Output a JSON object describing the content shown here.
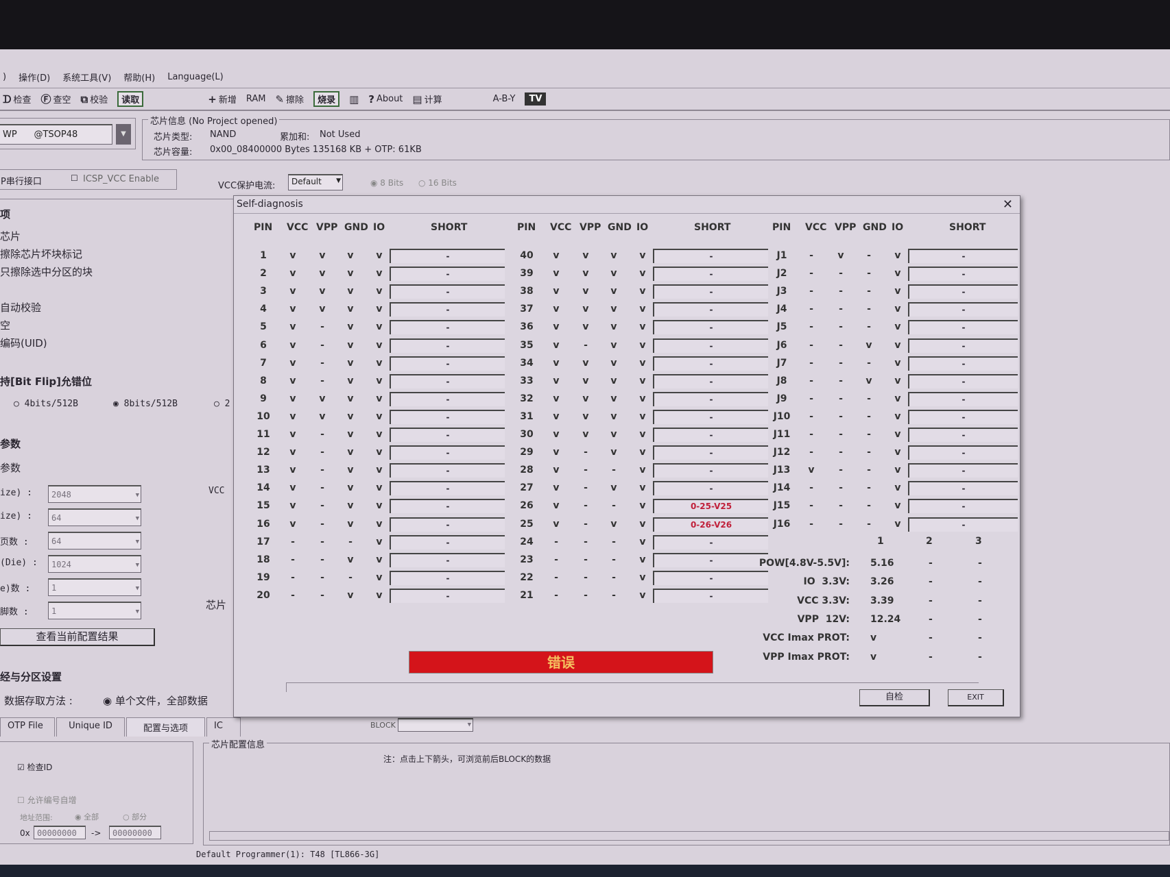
{
  "menu": [
    "操作(D)",
    "系统工具(V)",
    "帮助(H)",
    "Language(L)"
  ],
  "toolbar": [
    {
      "icon": "check-icon",
      "glyph": "ᗪ",
      "label": "检查"
    },
    {
      "icon": "blank-check-icon",
      "glyph": "Ⓕ",
      "label": "查空"
    },
    {
      "icon": "verify-icon",
      "glyph": "⧉",
      "label": "校验"
    },
    {
      "icon": "read-icon",
      "glyph": "",
      "label": "读取",
      "box": true
    },
    {
      "icon": "plus-icon",
      "glyph": "+",
      "label": "新增"
    },
    {
      "icon": "ram-icon",
      "glyph": "",
      "label": "RAM"
    },
    {
      "icon": "erase-icon",
      "glyph": "✎",
      "label": "擦除"
    },
    {
      "icon": "program-icon",
      "glyph": "",
      "label": "烧录",
      "box": true
    },
    {
      "icon": "chip-icon",
      "glyph": "▥",
      "label": ""
    },
    {
      "icon": "about-icon",
      "glyph": "?",
      "label": "About"
    },
    {
      "icon": "calculator-icon",
      "glyph": "▤",
      "label": "计算"
    },
    {
      "icon": "logic-gate-icon",
      "glyph": "",
      "label": "A-B-Y"
    },
    {
      "icon": "tv-icon",
      "glyph": "",
      "label": "TV",
      "tv": true
    }
  ],
  "chip_select": {
    "value": "WP      @TSOP48"
  },
  "chip_info": {
    "title": "芯片信息 (No Project opened)",
    "type_label": "芯片类型:",
    "type_value": "NAND",
    "checksum_label": "累加和:",
    "checksum_value": "Not Used",
    "capacity_label": "芯片容量:",
    "capacity_value": "0x00_08400000 Bytes 135168 KB  + OTP: 61KB"
  },
  "icsp": {
    "serial_label": "P串行接口",
    "vcc_enable_label": "ICSP_VCC Enable",
    "vcc_protect_label": "VCC保护电流:",
    "vcc_protect_value": "Default",
    "bits8": "8 Bits",
    "bits16": "16 Bits"
  },
  "options": {
    "section": "项",
    "items": [
      "芯片",
      "擦除芯片坏块标记",
      "只擦除选中分区的块",
      "",
      "自动校验",
      "空",
      "编码(UID)"
    ]
  },
  "bitflip": {
    "section": "持[Bit Flip]允错位",
    "opt1": "4bits/512B",
    "opt2": "8bits/512B",
    "opt3": "2"
  },
  "params": {
    "section": "参数",
    "sub": "参数",
    "rows": [
      {
        "label": "ize) :",
        "value": "2048"
      },
      {
        "label": "ize) :",
        "value": "64"
      },
      {
        "label": "页数 :",
        "value": "64"
      },
      {
        "label": "(Die) :",
        "value": "1024"
      },
      {
        "label": "e)数 :",
        "value": "1"
      },
      {
        "label": "脚数 :",
        "value": "1"
      }
    ],
    "view_button": "查看当前配置结果",
    "vcc_label": "VCC",
    "chip_label": "芯片"
  },
  "partition": {
    "section": "经与分区设置",
    "method_label": "数据存取方法 :",
    "method_value": "单个文件，全部数据"
  },
  "tabs": [
    "OTP File",
    "Unique ID",
    "配置与选项",
    "IC"
  ],
  "check_id": "检查ID",
  "allow_label": "允许编号自增",
  "addr_label": "地址范围:",
  "addr_all": "全部",
  "addr_part": "部分",
  "addr_from": "00000000",
  "addr_to": "00000000",
  "addr_prefix": "0x",
  "addr_arrow": "->",
  "config_info": {
    "title": "芯片配置信息",
    "block_label": "BLOCK",
    "note": "注：点击上下箭头，可浏览前后BLOCK的数据"
  },
  "status_bar": "Default Programmer(1): T48 [TL866-3G]",
  "dialog": {
    "title": "Self-diagnosis",
    "headers": [
      "PIN",
      "VCC",
      "VPP",
      "GND",
      "IO",
      "SHORT"
    ],
    "groups": [
      [
        [
          "1",
          "v",
          "v",
          "v",
          "v",
          "-"
        ],
        [
          "2",
          "v",
          "v",
          "v",
          "v",
          "-"
        ],
        [
          "3",
          "v",
          "v",
          "v",
          "v",
          "-"
        ],
        [
          "4",
          "v",
          "v",
          "v",
          "v",
          "-"
        ],
        [
          "5",
          "v",
          "-",
          "v",
          "v",
          "-"
        ],
        [
          "6",
          "v",
          "-",
          "v",
          "v",
          "-"
        ],
        [
          "7",
          "v",
          "-",
          "v",
          "v",
          "-"
        ],
        [
          "8",
          "v",
          "-",
          "v",
          "v",
          "-"
        ],
        [
          "9",
          "v",
          "v",
          "v",
          "v",
          "-"
        ],
        [
          "10",
          "v",
          "v",
          "v",
          "v",
          "-"
        ],
        [
          "11",
          "v",
          "-",
          "v",
          "v",
          "-"
        ],
        [
          "12",
          "v",
          "-",
          "v",
          "v",
          "-"
        ],
        [
          "13",
          "v",
          "-",
          "v",
          "v",
          "-"
        ],
        [
          "14",
          "v",
          "-",
          "v",
          "v",
          "-"
        ],
        [
          "15",
          "v",
          "-",
          "v",
          "v",
          "-"
        ],
        [
          "16",
          "v",
          "-",
          "v",
          "v",
          "-"
        ],
        [
          "17",
          "-",
          "-",
          "-",
          "v",
          "-"
        ],
        [
          "18",
          "-",
          "-",
          "v",
          "v",
          "-"
        ],
        [
          "19",
          "-",
          "-",
          "-",
          "v",
          "-"
        ],
        [
          "20",
          "-",
          "-",
          "v",
          "v",
          "-"
        ]
      ],
      [
        [
          "40",
          "v",
          "v",
          "v",
          "v",
          "-"
        ],
        [
          "39",
          "v",
          "v",
          "v",
          "v",
          "-"
        ],
        [
          "38",
          "v",
          "v",
          "v",
          "v",
          "-"
        ],
        [
          "37",
          "v",
          "v",
          "v",
          "v",
          "-"
        ],
        [
          "36",
          "v",
          "v",
          "v",
          "v",
          "-"
        ],
        [
          "35",
          "v",
          "-",
          "v",
          "v",
          "-"
        ],
        [
          "34",
          "v",
          "v",
          "v",
          "v",
          "-"
        ],
        [
          "33",
          "v",
          "v",
          "v",
          "v",
          "-"
        ],
        [
          "32",
          "v",
          "v",
          "v",
          "v",
          "-"
        ],
        [
          "31",
          "v",
          "v",
          "v",
          "v",
          "-"
        ],
        [
          "30",
          "v",
          "v",
          "v",
          "v",
          "-"
        ],
        [
          "29",
          "v",
          "-",
          "v",
          "v",
          "-"
        ],
        [
          "28",
          "v",
          "-",
          "-",
          "v",
          "-"
        ],
        [
          "27",
          "v",
          "-",
          "v",
          "v",
          "-"
        ],
        [
          "26",
          "v",
          "-",
          "-",
          "v",
          "0-25-V25"
        ],
        [
          "25",
          "v",
          "-",
          "v",
          "v",
          "0-26-V26"
        ],
        [
          "24",
          "-",
          "-",
          "-",
          "v",
          "-"
        ],
        [
          "23",
          "-",
          "-",
          "-",
          "v",
          "-"
        ],
        [
          "22",
          "-",
          "-",
          "-",
          "v",
          "-"
        ],
        [
          "21",
          "-",
          "-",
          "-",
          "v",
          "-"
        ]
      ],
      [
        [
          "J1",
          "-",
          "v",
          "-",
          "v",
          "-"
        ],
        [
          "J2",
          "-",
          "-",
          "-",
          "v",
          "-"
        ],
        [
          "J3",
          "-",
          "-",
          "-",
          "v",
          "-"
        ],
        [
          "J4",
          "-",
          "-",
          "-",
          "v",
          "-"
        ],
        [
          "J5",
          "-",
          "-",
          "-",
          "v",
          "-"
        ],
        [
          "J6",
          "-",
          "-",
          "v",
          "v",
          "-"
        ],
        [
          "J7",
          "-",
          "-",
          "-",
          "v",
          "-"
        ],
        [
          "J8",
          "-",
          "-",
          "v",
          "v",
          "-"
        ],
        [
          "J9",
          "-",
          "-",
          "-",
          "v",
          "-"
        ],
        [
          "J10",
          "-",
          "-",
          "-",
          "v",
          "-"
        ],
        [
          "J11",
          "-",
          "-",
          "-",
          "v",
          "-"
        ],
        [
          "J12",
          "-",
          "-",
          "-",
          "v",
          "-"
        ],
        [
          "J13",
          "v",
          "-",
          "-",
          "v",
          "-"
        ],
        [
          "J14",
          "-",
          "-",
          "-",
          "v",
          "-"
        ],
        [
          "J15",
          "-",
          "-",
          "-",
          "v",
          "-"
        ],
        [
          "J16",
          "-",
          "-",
          "-",
          "v",
          "-"
        ]
      ]
    ],
    "stat_columns": [
      "1",
      "2",
      "3"
    ],
    "stats": [
      [
        "POW[4.8V-5.5V]:",
        "5.16",
        "-",
        "-"
      ],
      [
        "IO  3.3V:",
        "3.26",
        "-",
        "-"
      ],
      [
        "VCC 3.3V:",
        "3.39",
        "-",
        "-"
      ],
      [
        "VPP  12V:",
        "12.24",
        "-",
        "-"
      ],
      [
        "VCC Imax PROT:",
        "v",
        "-",
        "-"
      ],
      [
        "VPP Imax PROT:",
        "v",
        "-",
        "-"
      ]
    ],
    "result": "错误",
    "self_test_button": "自检",
    "exit_button": "EXIT",
    "error_color": "#d4141a",
    "short_error_color": "#c0203a"
  }
}
